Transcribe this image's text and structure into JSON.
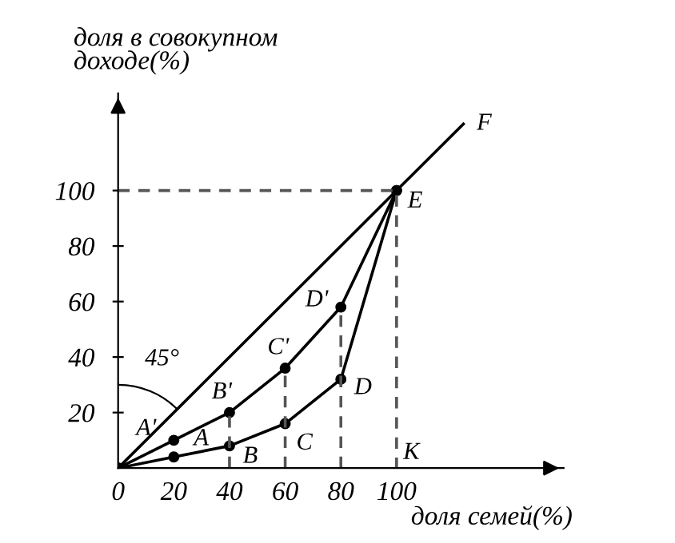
{
  "chart_data": {
    "type": "line",
    "ylabel": "доля в совокупном\nдоходе(%)",
    "xlabel": "доля семей(%)",
    "xlim": [
      0,
      160
    ],
    "ylim": [
      0,
      135
    ],
    "xticks": [
      0,
      20,
      40,
      60,
      80,
      100
    ],
    "yticks": [
      20,
      40,
      60,
      80,
      100
    ],
    "grid": false,
    "legend": false,
    "series": [
      {
        "color": "#000000",
        "x": [
          0,
          124
        ],
        "values": [
          0,
          124
        ],
        "line_style": "solid"
      },
      {
        "color": "#000000",
        "x": [
          0,
          20,
          40,
          60,
          80,
          100
        ],
        "values": [
          0,
          10,
          20,
          36,
          58,
          100
        ],
        "marker": "circle",
        "line_style": "solid"
      },
      {
        "color": "#000000",
        "x": [
          0,
          20,
          40,
          60,
          80,
          100
        ],
        "values": [
          0,
          4,
          8,
          16,
          32,
          100
        ],
        "marker": "circle",
        "line_style": "solid"
      },
      {
        "color": "#555555",
        "x": [
          40,
          40,
          null,
          60,
          60,
          null,
          80,
          80,
          null,
          0,
          100,
          100
        ],
        "values": [
          0,
          20,
          null,
          0,
          36,
          null,
          0,
          58,
          null,
          100,
          100,
          0
        ],
        "line_style": "dashed"
      }
    ],
    "annotations": [
      {
        "text": "A'",
        "x": 20,
        "y": 10
      },
      {
        "text": "B'",
        "x": 40,
        "y": 20
      },
      {
        "text": "C'",
        "x": 60,
        "y": 36
      },
      {
        "text": "D'",
        "x": 80,
        "y": 58
      },
      {
        "text": "A",
        "x": 20,
        "y": 4
      },
      {
        "text": "B",
        "x": 40,
        "y": 8
      },
      {
        "text": "C",
        "x": 60,
        "y": 16
      },
      {
        "text": "D",
        "x": 80,
        "y": 32
      },
      {
        "text": "E",
        "x": 100,
        "y": 100
      },
      {
        "text": "F",
        "x": 124,
        "y": 124
      },
      "K",
      "45°"
    ]
  }
}
